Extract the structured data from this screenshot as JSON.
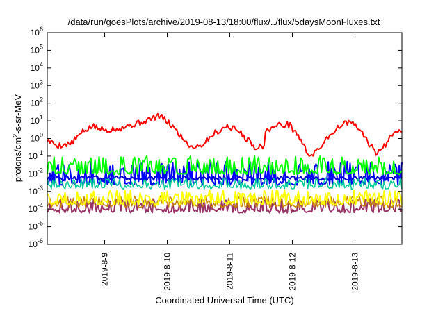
{
  "chart_data": {
    "type": "line",
    "title": "/data/run/goesPlots/archive/2019-08-13/18:00/flux/../flux/5daysMoonFluxes.txt",
    "xlabel": "Coordinated Universal Time (UTC)",
    "ylabel": {
      "base": "protons/cm",
      "sup": "2",
      "rest": "-s-sr-MeV"
    },
    "y_scale": "log",
    "ylim": [
      1e-06,
      1000000.0
    ],
    "y_ticks": [
      {
        "value": 1000000.0,
        "base": "10",
        "exp": "6"
      },
      {
        "value": 100000.0,
        "base": "10",
        "exp": "5"
      },
      {
        "value": 10000.0,
        "base": "10",
        "exp": "4"
      },
      {
        "value": 1000.0,
        "base": "10",
        "exp": "3"
      },
      {
        "value": 100.0,
        "base": "10",
        "exp": "2"
      },
      {
        "value": 10.0,
        "base": "10",
        "exp": "1"
      },
      {
        "value": 1.0,
        "base": "10",
        "exp": "0"
      },
      {
        "value": 0.1,
        "base": "10",
        "exp": "-1"
      },
      {
        "value": 0.01,
        "base": "10",
        "exp": "-2"
      },
      {
        "value": 0.001,
        "base": "10",
        "exp": "-3"
      },
      {
        "value": 0.0001,
        "base": "10",
        "exp": "-4"
      },
      {
        "value": 1e-05,
        "base": "10",
        "exp": "-5"
      },
      {
        "value": 1e-06,
        "base": "10",
        "exp": "-6"
      }
    ],
    "xlim": [
      "2019-08-08T02:00",
      "2019-08-13T18:00"
    ],
    "x_ticks": [
      {
        "date": "2019-08-09T00:00",
        "label": "2019-8-9"
      },
      {
        "date": "2019-08-10T00:00",
        "label": "2019-8-10"
      },
      {
        "date": "2019-08-11T00:00",
        "label": "2019-8-11"
      },
      {
        "date": "2019-08-12T00:00",
        "label": "2019-8-12"
      },
      {
        "date": "2019-08-13T00:00",
        "label": "2019-8-13"
      }
    ],
    "grid": false,
    "legend": "none",
    "series": [
      {
        "color": "#ff0000",
        "style": "smooth",
        "line_width": 2,
        "anchors": [
          {
            "t": "2019-08-08T02:00",
            "v": 0.8
          },
          {
            "t": "2019-08-08T06:00",
            "v": 0.4
          },
          {
            "t": "2019-08-08T11:00",
            "v": 0.5
          },
          {
            "t": "2019-08-08T15:00",
            "v": 2
          },
          {
            "t": "2019-08-08T19:00",
            "v": 5
          },
          {
            "t": "2019-08-09T00:00",
            "v": 3
          },
          {
            "t": "2019-08-09T06:00",
            "v": 4
          },
          {
            "t": "2019-08-09T14:00",
            "v": 8
          },
          {
            "t": "2019-08-09T21:00",
            "v": 20
          },
          {
            "t": "2019-08-10T02:00",
            "v": 5
          },
          {
            "t": "2019-08-10T06:00",
            "v": 1
          },
          {
            "t": "2019-08-10T09:00",
            "v": 0.35
          },
          {
            "t": "2019-08-10T13:00",
            "v": 0.4
          },
          {
            "t": "2019-08-10T18:00",
            "v": 2
          },
          {
            "t": "2019-08-10T23:00",
            "v": 5
          },
          {
            "t": "2019-08-11T03:00",
            "v": 3
          },
          {
            "t": "2019-08-11T07:00",
            "v": 0.8
          },
          {
            "t": "2019-08-11T10:00",
            "v": 0.3
          },
          {
            "t": "2019-08-11T13:00",
            "v": 0.4
          },
          {
            "t": "2019-08-11T14:00",
            "v": 3
          },
          {
            "t": "2019-08-11T19:00",
            "v": 6
          },
          {
            "t": "2019-08-11T23:00",
            "v": 6
          },
          {
            "t": "2019-08-12T03:00",
            "v": 1
          },
          {
            "t": "2019-08-12T06:00",
            "v": 0.12
          },
          {
            "t": "2019-08-12T09:00",
            "v": 0.15
          },
          {
            "t": "2019-08-12T13:00",
            "v": 1
          },
          {
            "t": "2019-08-12T18:00",
            "v": 5
          },
          {
            "t": "2019-08-12T22:00",
            "v": 9
          },
          {
            "t": "2019-08-13T02:00",
            "v": 3
          },
          {
            "t": "2019-08-13T05:00",
            "v": 0.6
          },
          {
            "t": "2019-08-13T08:00",
            "v": 0.15
          },
          {
            "t": "2019-08-13T11:00",
            "v": 0.3
          },
          {
            "t": "2019-08-13T15:00",
            "v": 3
          },
          {
            "t": "2019-08-13T18:00",
            "v": 3
          }
        ]
      },
      {
        "color": "#00ff00",
        "style": "spiky",
        "line_width": 2,
        "base": 0.012,
        "spike_max": 0.1,
        "seed": 3
      },
      {
        "color": "#00cc99",
        "style": "spiky",
        "line_width": 1.5,
        "base": 0.0018,
        "spike_max": 0.006,
        "seed": 7
      },
      {
        "color": "#0000ff",
        "style": "spiky",
        "line_width": 2,
        "base": 0.003,
        "spike_max": 0.05,
        "seed": 11
      },
      {
        "color": "#0000cc",
        "style": "flat",
        "line_width": 2,
        "base": 0.0055,
        "spike_max": 0.007,
        "seed": 13
      },
      {
        "color": "#ffff00",
        "style": "spiky",
        "line_width": 2,
        "base": 0.00022,
        "spike_max": 0.0012,
        "seed": 17
      },
      {
        "color": "#cc8800",
        "style": "spiky",
        "line_width": 1.5,
        "base": 0.00016,
        "spike_max": 0.0006,
        "seed": 19
      },
      {
        "color": "#993366",
        "style": "spiky",
        "line_width": 2,
        "base": 8e-05,
        "spike_max": 0.0004,
        "seed": 23
      }
    ]
  }
}
